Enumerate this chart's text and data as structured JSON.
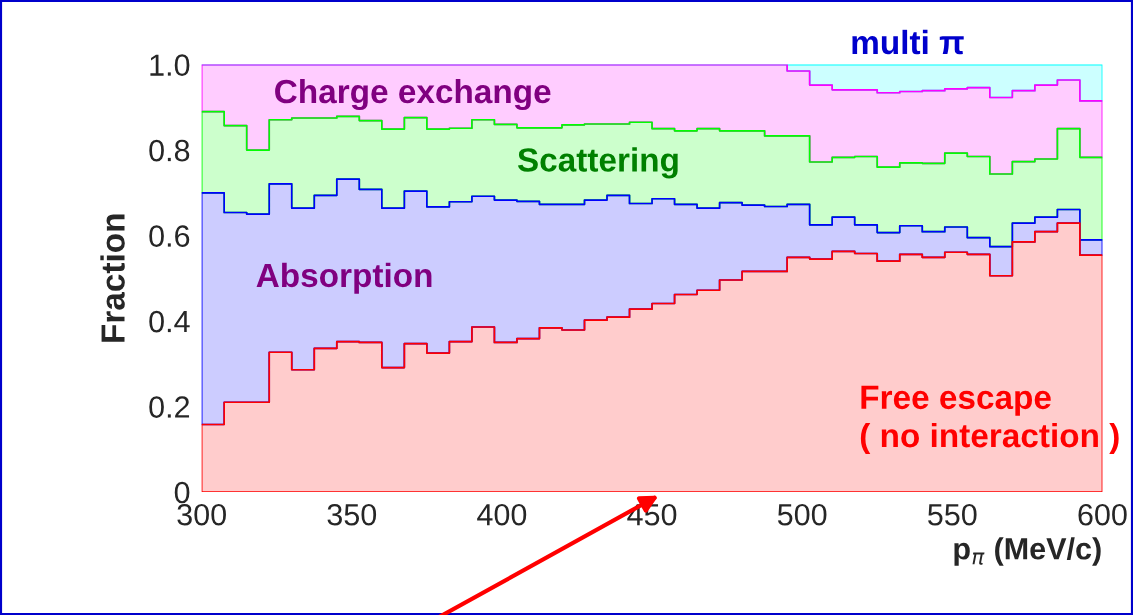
{
  "chart_data": {
    "type": "area",
    "stacked": true,
    "xlabel": "p$_{π}$ (MeV/c)",
    "ylabel": "Fraction",
    "x": [
      300,
      307.5,
      315,
      322.5,
      330,
      337.5,
      345,
      352.5,
      360,
      367.5,
      375,
      382.5,
      390,
      397.5,
      405,
      412.5,
      420,
      427.5,
      435,
      442.5,
      450,
      457.5,
      465,
      472.5,
      480,
      487.5,
      495,
      502.5,
      510,
      517.5,
      525,
      532.5,
      540,
      547.5,
      555,
      562.5,
      570,
      577.5,
      585,
      592.5,
      600
    ],
    "xlim": [
      300,
      600
    ],
    "xticks": [
      300,
      350,
      400,
      450,
      500,
      550,
      600
    ],
    "ylim": [
      0,
      1
    ],
    "yticks": [
      0,
      0.2,
      0.4,
      0.6,
      0.8,
      {
        "value": 1,
        "label": "1.0"
      }
    ],
    "grid": false,
    "legend": false,
    "series": [
      {
        "name": "Free escape\n( no interaction )",
        "color": "#ff0000",
        "values": [
          0.158,
          0.21,
          0.21,
          0.327,
          0.286,
          0.336,
          0.352,
          0.35,
          0.291,
          0.347,
          0.325,
          0.352,
          0.386,
          0.35,
          0.359,
          0.384,
          0.379,
          0.402,
          0.409,
          0.428,
          0.441,
          0.462,
          0.472,
          0.496,
          0.516,
          0.516,
          0.549,
          0.545,
          0.563,
          0.558,
          0.54,
          0.556,
          0.549,
          0.561,
          0.556,
          0.506,
          0.585,
          0.609,
          0.629,
          0.554,
          0.554
        ]
      },
      {
        "name": "Absorption",
        "color": "#0000ff",
        "values": [
          0.542,
          0.444,
          0.44,
          0.394,
          0.378,
          0.358,
          0.38,
          0.358,
          0.373,
          0.357,
          0.342,
          0.327,
          0.306,
          0.333,
          0.321,
          0.289,
          0.294,
          0.281,
          0.285,
          0.247,
          0.245,
          0.211,
          0.192,
          0.181,
          0.155,
          0.152,
          0.124,
          0.08,
          0.08,
          0.067,
          0.067,
          0.067,
          0.06,
          0.059,
          0.039,
          0.068,
          0.044,
          0.034,
          0.032,
          0.036,
          0.036
        ]
      },
      {
        "name": "Scattering",
        "color": "#00ff00",
        "values": [
          0.19,
          0.203,
          0.15,
          0.15,
          0.211,
          0.181,
          0.147,
          0.161,
          0.185,
          0.172,
          0.182,
          0.172,
          0.179,
          0.177,
          0.172,
          0.179,
          0.186,
          0.178,
          0.167,
          0.19,
          0.164,
          0.172,
          0.186,
          0.168,
          0.174,
          0.165,
          0.16,
          0.147,
          0.14,
          0.16,
          0.153,
          0.147,
          0.16,
          0.173,
          0.19,
          0.17,
          0.144,
          0.136,
          0.189,
          0.193,
          0.193
        ]
      },
      {
        "name": "Charge exchange",
        "color": "#ff00ff",
        "values": [
          0.11,
          0.143,
          0.2,
          0.129,
          0.125,
          0.125,
          0.121,
          0.131,
          0.151,
          0.124,
          0.151,
          0.149,
          0.129,
          0.14,
          0.148,
          0.148,
          0.141,
          0.139,
          0.139,
          0.135,
          0.15,
          0.155,
          0.15,
          0.155,
          0.155,
          0.167,
          0.152,
          0.18,
          0.158,
          0.156,
          0.174,
          0.167,
          0.17,
          0.15,
          0.161,
          0.179,
          0.166,
          0.173,
          0.114,
          0.132,
          0.132
        ]
      },
      {
        "name": "multi π",
        "color": "#00ffff",
        "values": [
          0,
          0,
          0,
          0,
          0,
          0,
          0,
          0,
          0,
          0,
          0,
          0,
          0,
          0,
          0,
          0,
          0,
          0,
          0,
          0,
          0,
          0,
          0,
          0,
          0,
          0,
          0.015,
          0.048,
          0.059,
          0.059,
          0.066,
          0.063,
          0.061,
          0.057,
          0.054,
          0.077,
          0.061,
          0.048,
          0.036,
          0.085,
          0.085
        ]
      }
    ]
  }
}
